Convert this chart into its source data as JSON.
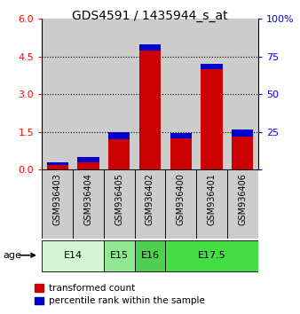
{
  "title": "GDS4591 / 1435944_s_at",
  "samples": [
    "GSM936403",
    "GSM936404",
    "GSM936405",
    "GSM936402",
    "GSM936400",
    "GSM936401",
    "GSM936406"
  ],
  "red_values": [
    0.18,
    0.28,
    1.2,
    4.75,
    1.25,
    4.0,
    1.3
  ],
  "blue_values": [
    0.12,
    0.22,
    0.28,
    0.22,
    0.22,
    0.22,
    0.28
  ],
  "age_groups": [
    {
      "label": "E14",
      "start": 0,
      "end": 2,
      "color": "#d4f5d4"
    },
    {
      "label": "E15",
      "start": 2,
      "end": 3,
      "color": "#90e890"
    },
    {
      "label": "E16",
      "start": 3,
      "end": 4,
      "color": "#50d050"
    },
    {
      "label": "E17.5",
      "start": 4,
      "end": 7,
      "color": "#44dd44"
    }
  ],
  "ylim_left": [
    0,
    6
  ],
  "ylim_right": [
    0,
    100
  ],
  "yticks_left": [
    0,
    1.5,
    3,
    4.5,
    6
  ],
  "yticks_right": [
    0,
    25,
    50,
    75,
    100
  ],
  "bar_width": 0.7,
  "red_color": "#cc0000",
  "blue_color": "#0000cc",
  "bg_color": "#cccccc",
  "legend_red": "transformed count",
  "legend_blue": "percentile rank within the sample",
  "age_label": "age"
}
